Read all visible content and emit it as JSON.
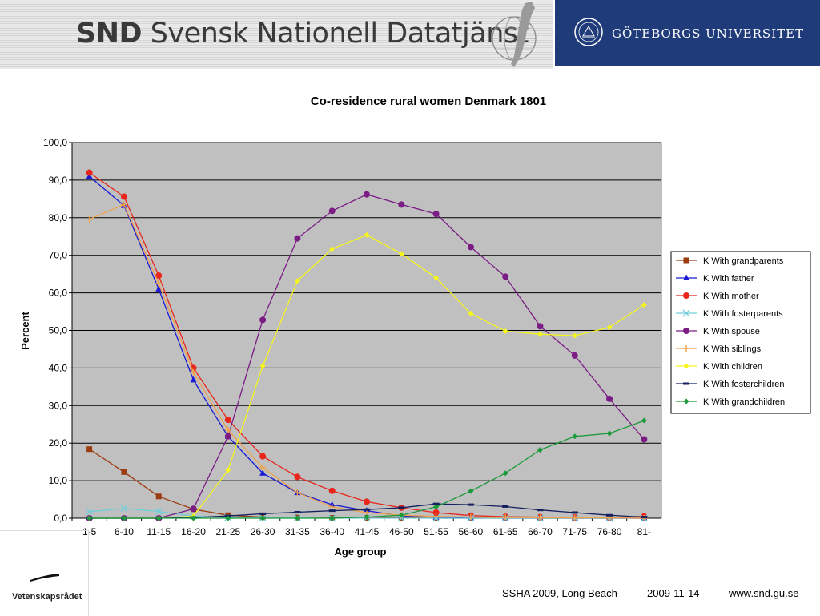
{
  "header": {
    "logo_bold": "SND",
    "logo_rest": " Svensk Nationell Datatjänst",
    "university": "GÖTEBORGS UNIVERSITET"
  },
  "funder": {
    "name": "Vetenskapsrådet"
  },
  "footer": {
    "event": "SSHA 2009, Long Beach",
    "date": "2009-11-14",
    "url": "www.snd.gu.se"
  },
  "chart_data": {
    "type": "line",
    "title": "Co-residence rural women Denmark 1801",
    "xlabel": "Age group",
    "ylabel": "Percent",
    "ylim": [
      0,
      100
    ],
    "yticks": [
      "0,0",
      "10,0",
      "20,0",
      "30,0",
      "40,0",
      "50,0",
      "60,0",
      "70,0",
      "80,0",
      "90,0",
      "100,0"
    ],
    "grid": true,
    "legend_position": "right",
    "categories": [
      "1-5",
      "6-10",
      "11-15",
      "16-20",
      "21-25",
      "26-30",
      "31-35",
      "36-40",
      "41-45",
      "46-50",
      "51-55",
      "56-60",
      "61-65",
      "66-70",
      "71-75",
      "76-80",
      "81-"
    ],
    "series": [
      {
        "name": "K With  grandparents",
        "color": "#9c3b10",
        "marker": "square",
        "values": [
          18.4,
          12.3,
          5.8,
          2.4,
          0.8,
          0.3,
          0.2,
          0.1,
          0.1,
          0.1,
          0,
          0,
          0,
          0,
          0,
          0,
          0
        ]
      },
      {
        "name": "K With  father",
        "color": "#1a1ad6",
        "marker": "triangle",
        "values": [
          91.0,
          83.2,
          61.0,
          36.8,
          21.8,
          12.0,
          6.8,
          3.6,
          2.0,
          0.6,
          0.3,
          0.1,
          0,
          0,
          0,
          0,
          0
        ]
      },
      {
        "name": "K With  mother",
        "color": "#e8261c",
        "marker": "circle",
        "values": [
          92.0,
          85.6,
          64.6,
          40.0,
          26.2,
          16.5,
          11.0,
          7.3,
          4.4,
          2.8,
          1.5,
          0.7,
          0.4,
          0.3,
          0.2,
          0.2,
          0.5
        ]
      },
      {
        "name": "K With  fosterparents",
        "color": "#6fcfd8",
        "marker": "x",
        "values": [
          1.7,
          2.6,
          1.8,
          0.6,
          0.2,
          0.1,
          0.1,
          0,
          0,
          0,
          0,
          0,
          0,
          0,
          0,
          0,
          0
        ]
      },
      {
        "name": "K With  spouse",
        "color": "#7b1c85",
        "marker": "circle",
        "values": [
          0,
          0,
          0,
          2.5,
          21.8,
          52.8,
          74.5,
          81.8,
          86.2,
          83.5,
          81.0,
          72.2,
          64.3,
          51.1,
          43.3,
          31.8,
          21.0
        ]
      },
      {
        "name": "K With  siblings",
        "color": "#f0a24a",
        "marker": "plus",
        "values": [
          79.6,
          83.5,
          62.5,
          38.8,
          23.5,
          13.5,
          6.8,
          3.0,
          1.5,
          0.8,
          0.5,
          0.3,
          0.2,
          0.1,
          0.1,
          0.1,
          0
        ]
      },
      {
        "name": "K With  children",
        "color": "#f5f51c",
        "marker": "diamond",
        "values": [
          0,
          0,
          0,
          0.5,
          12.8,
          40.5,
          63.2,
          71.7,
          75.4,
          70.4,
          64.0,
          54.5,
          49.8,
          49.0,
          48.6,
          50.8,
          56.8
        ]
      },
      {
        "name": "K With  fosterchildren",
        "color": "#15205f",
        "marker": "dash",
        "values": [
          0,
          0,
          0,
          0.2,
          0.6,
          1.2,
          1.6,
          2.0,
          2.3,
          2.8,
          3.8,
          3.6,
          3.1,
          2.2,
          1.5,
          0.8,
          0.3
        ]
      },
      {
        "name": "K With  grandchildren",
        "color": "#1a9a3a",
        "marker": "diamond",
        "values": [
          0,
          0,
          0,
          0,
          0,
          0,
          0,
          0,
          0.3,
          0.8,
          3.0,
          7.2,
          12.0,
          18.2,
          21.8,
          22.6,
          26.0
        ]
      }
    ]
  }
}
